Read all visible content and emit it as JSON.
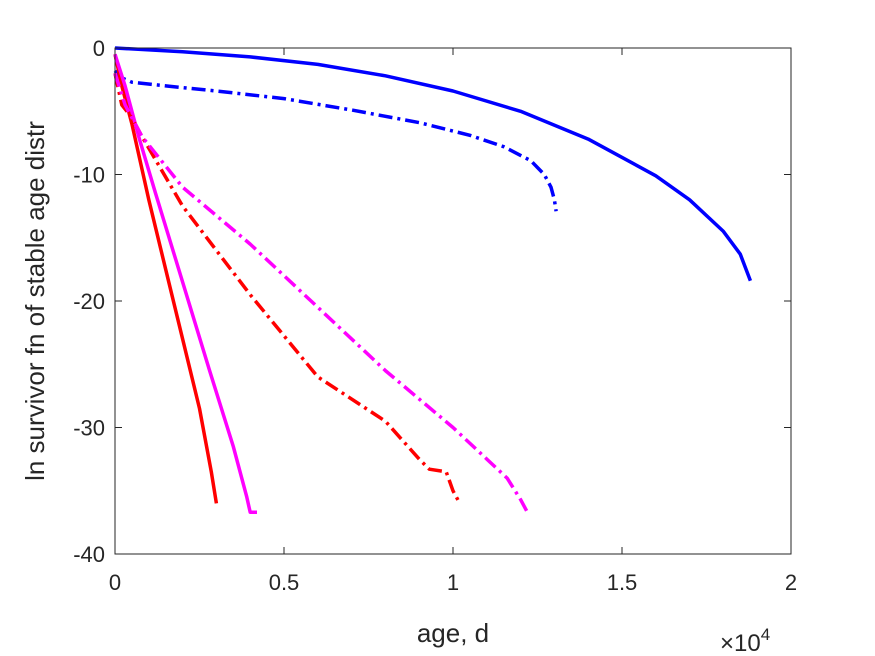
{
  "chart_data": {
    "type": "line",
    "xlabel": "age, d",
    "ylabel": "ln survivor fn of stable age distr",
    "xlim": [
      0,
      20000
    ],
    "ylim": [
      -40,
      0
    ],
    "x_ticks": [
      0,
      5000,
      10000,
      15000,
      20000
    ],
    "x_tick_labels": [
      "0",
      "0.5",
      "1",
      "1.5",
      "2"
    ],
    "x_exponent_label": {
      "base": "×10",
      "power": "4"
    },
    "y_ticks": [
      0,
      -10,
      -20,
      -30,
      -40
    ],
    "y_tick_labels": [
      "0",
      "-10",
      "-20",
      "-30",
      "-40"
    ],
    "grid": false,
    "series": [
      {
        "color": "#0000FF",
        "style": "solid",
        "x": [
          0,
          2000,
          4000,
          6000,
          8000,
          10000,
          12000,
          14000,
          16000,
          17000,
          18000,
          18500,
          18800
        ],
        "y": [
          0,
          -0.3,
          -0.7,
          -1.3,
          -2.2,
          -3.4,
          -5.0,
          -7.2,
          -10.1,
          -12.0,
          -14.5,
          -16.3,
          -18.4
        ]
      },
      {
        "color": "#0000FF",
        "style": "dashdot",
        "x": [
          0,
          150,
          500,
          1500,
          3000,
          5000,
          7000,
          9000,
          10500,
          11500,
          12300,
          12700,
          12900,
          13000,
          13050
        ],
        "y": [
          -1.8,
          -2.3,
          -2.7,
          -3.0,
          -3.4,
          -4.0,
          -4.9,
          -5.9,
          -6.9,
          -7.8,
          -8.9,
          -10.0,
          -11.0,
          -12.0,
          -12.9
        ]
      },
      {
        "color": "#FF0000",
        "style": "solid",
        "x": [
          0,
          200,
          500,
          1000,
          1500,
          2000,
          2500,
          2850,
          3000
        ],
        "y": [
          -0.5,
          -3.0,
          -6.0,
          -12.0,
          -17.5,
          -23.0,
          -28.5,
          -33.5,
          -36.0
        ]
      },
      {
        "color": "#FF00FF",
        "style": "solid",
        "x": [
          0,
          300,
          700,
          1200,
          2000,
          2800,
          3500,
          3900,
          4000,
          4200
        ],
        "y": [
          -0.5,
          -3.0,
          -7.0,
          -11.5,
          -18.5,
          -25.5,
          -31.5,
          -35.5,
          -36.7,
          -36.7
        ]
      },
      {
        "color": "#FF0000",
        "style": "dashdot",
        "x": [
          0,
          200,
          500,
          800,
          2000,
          4000,
          6000,
          8000,
          9000,
          9300,
          9800,
          10000,
          10200
        ],
        "y": [
          -2.0,
          -4.5,
          -5.5,
          -7.0,
          -12.5,
          -19.5,
          -26.0,
          -29.5,
          -32.5,
          -33.3,
          -33.5,
          -35.0,
          -36.0
        ]
      },
      {
        "color": "#FF00FF",
        "style": "dashdot",
        "x": [
          0,
          300,
          800,
          2000,
          4000,
          6000,
          8000,
          10000,
          11000,
          11600,
          12000,
          12200
        ],
        "y": [
          -2.0,
          -4.5,
          -7.0,
          -11.0,
          -15.5,
          -20.5,
          -25.5,
          -30.0,
          -32.5,
          -34.0,
          -35.7,
          -36.7
        ]
      }
    ]
  }
}
